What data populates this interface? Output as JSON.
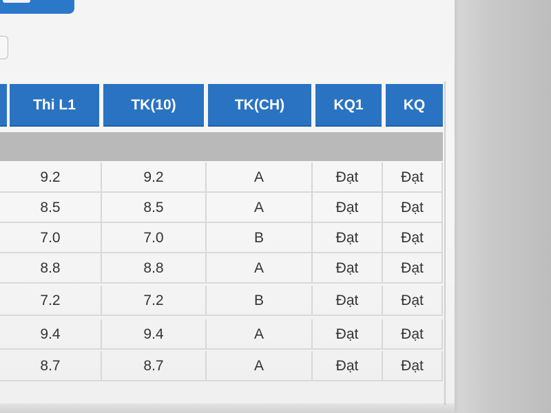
{
  "table": {
    "headers": [
      "Thi L1",
      "TK(10)",
      "TK(CH)",
      "KQ1",
      "KQ"
    ],
    "rows": [
      {
        "thi_l1": "9.2",
        "tk10": "9.2",
        "tkch": "A",
        "kq1": "Đạt",
        "kq": "Đạt"
      },
      {
        "thi_l1": "8.5",
        "tk10": "8.5",
        "tkch": "A",
        "kq1": "Đạt",
        "kq": "Đạt"
      },
      {
        "thi_l1": "7.0",
        "tk10": "7.0",
        "tkch": "B",
        "kq1": "Đạt",
        "kq": "Đạt"
      },
      {
        "thi_l1": "8.8",
        "tk10": "8.8",
        "tkch": "A",
        "kq1": "Đạt",
        "kq": "Đạt"
      },
      {
        "thi_l1": "7.2",
        "tk10": "7.2",
        "tkch": "B",
        "kq1": "Đạt",
        "kq": "Đạt"
      },
      {
        "thi_l1": "9.4",
        "tk10": "9.4",
        "tkch": "A",
        "kq1": "Đạt",
        "kq": "Đạt"
      },
      {
        "thi_l1": "8.7",
        "tk10": "8.7",
        "tkch": "A",
        "kq1": "Đạt",
        "kq": "Đạt"
      }
    ]
  },
  "colors": {
    "header_bg": "#2a73c2",
    "header_text": "#ffffff",
    "separator_band": "#b9b9b9"
  }
}
